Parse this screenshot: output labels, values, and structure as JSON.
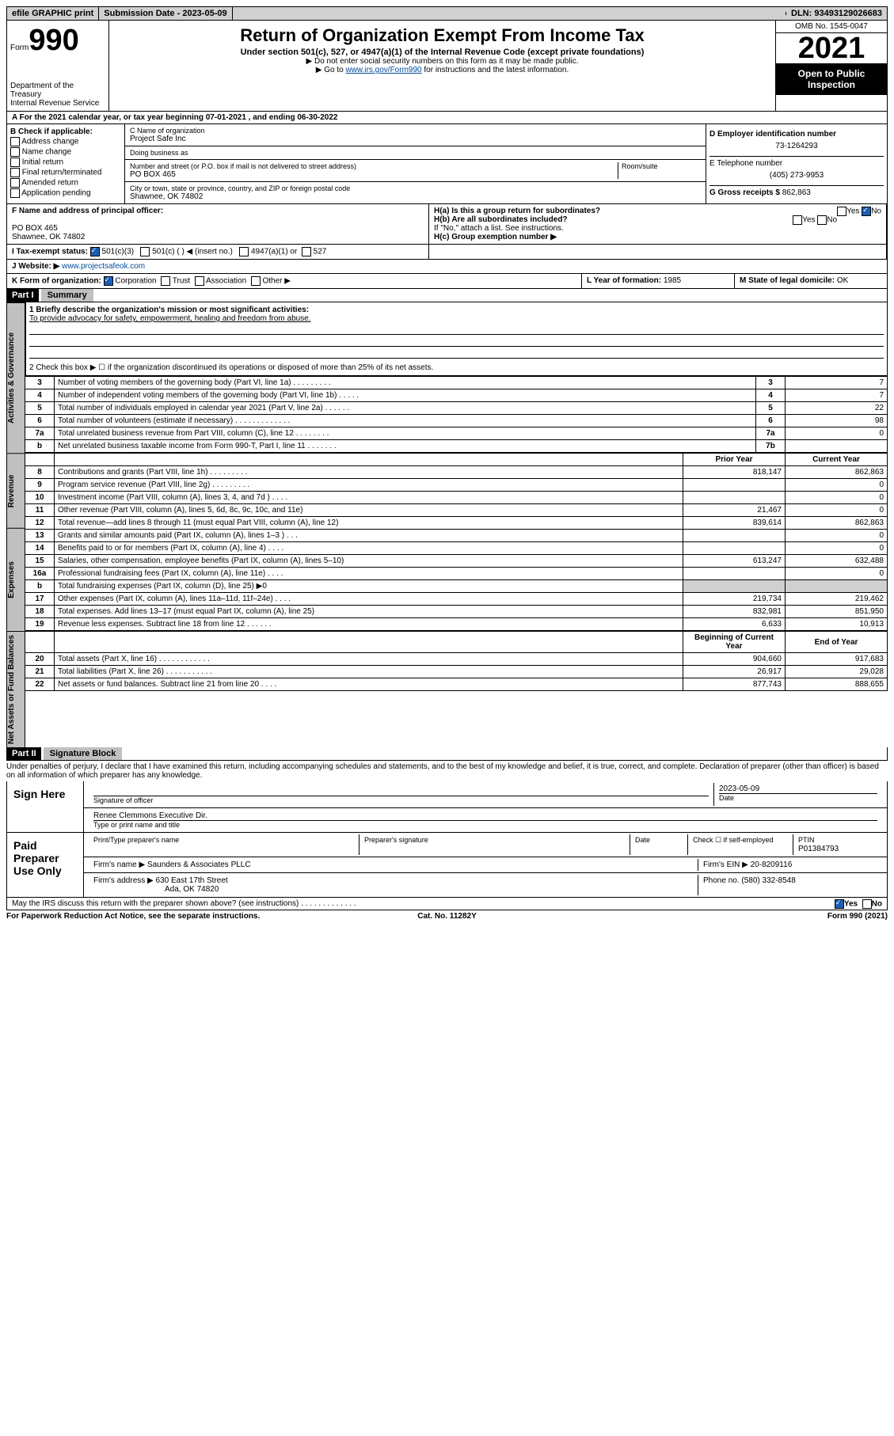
{
  "topbar": {
    "efile": "efile GRAPHIC print",
    "submission_label": "Submission Date",
    "submission_value": "2023-05-09",
    "dln_label": "DLN:",
    "dln_value": "93493129026683"
  },
  "header": {
    "form_word": "Form",
    "form_number": "990",
    "dept": "Department of the Treasury",
    "irs": "Internal Revenue Service",
    "title": "Return of Organization Exempt From Income Tax",
    "sub": "Under section 501(c), 527, or 4947(a)(1) of the Internal Revenue Code (except private foundations)",
    "warn1": "▶ Do not enter social security numbers on this form as it may be made public.",
    "warn2_pre": "▶ Go to ",
    "warn2_link": "www.irs.gov/Form990",
    "warn2_post": " for instructions and the latest information.",
    "omb": "OMB No. 1545-0047",
    "year": "2021",
    "open_public": "Open to Public Inspection"
  },
  "row_a": {
    "text_pre": "A For the 2021 calendar year, or tax year beginning ",
    "begin": "07-01-2021",
    "mid": " , and ending ",
    "end": "06-30-2022"
  },
  "col_b": {
    "label": "B Check if applicable:",
    "opts": [
      "Address change",
      "Name change",
      "Initial return",
      "Final return/terminated",
      "Amended return",
      "Application pending"
    ],
    "checked": [
      false,
      false,
      false,
      false,
      false,
      false
    ]
  },
  "col_c": {
    "name_label": "C Name of organization",
    "name": "Project Safe Inc",
    "dba_label": "Doing business as",
    "dba": "",
    "street_label": "Number and street (or P.O. box if mail is not delivered to street address)",
    "room_label": "Room/suite",
    "street": "PO BOX 465",
    "city_label": "City or town, state or province, country, and ZIP or foreign postal code",
    "city": "Shawnee, OK  74802"
  },
  "col_d": {
    "label": "D Employer identification number",
    "ein": "73-1264293"
  },
  "col_e": {
    "label": "E Telephone number",
    "phone": "(405) 273-9953"
  },
  "col_g": {
    "label": "G Gross receipts $",
    "value": "862,863"
  },
  "row_f": {
    "label": "F  Name and address of principal officer:",
    "addr1": "PO BOX 465",
    "addr2": "Shawnee, OK  74802"
  },
  "row_h": {
    "ha": "H(a)  Is this a group return for subordinates?",
    "hb": "H(b)  Are all subordinates included?",
    "hb_note": "If \"No,\" attach a list. See instructions.",
    "hc": "H(c)  Group exemption number ▶",
    "yes": "Yes",
    "no": "No",
    "ha_no_checked": true
  },
  "row_i": {
    "label": "I  Tax-exempt status:",
    "c3": "501(c)(3)",
    "c": "501(c) (  ) ◀ (insert no.)",
    "a1": "4947(a)(1) or",
    "s527": "527",
    "c3_checked": true
  },
  "row_j": {
    "label": "J  Website: ▶",
    "value": "www.projectsafeok.com"
  },
  "row_k": {
    "label": "K Form of organization:",
    "corp": "Corporation",
    "trust": "Trust",
    "assoc": "Association",
    "other": "Other ▶",
    "corp_checked": true
  },
  "row_l": {
    "label": "L Year of formation:",
    "value": "1985"
  },
  "row_m": {
    "label": "M State of legal domicile:",
    "value": "OK"
  },
  "part1": {
    "hdr": "Part I",
    "title": "Summary",
    "l1_label": "1  Briefly describe the organization's mission or most significant activities:",
    "l1_value": "To provide advocacy for safety, empowerment, healing and freedom from abuse.",
    "l2": "2  Check this box ▶ ☐  if the organization discontinued its operations or disposed of more than 25% of its net assets.",
    "groups": {
      "gov": "Activities & Governance",
      "rev": "Revenue",
      "exp": "Expenses",
      "net": "Net Assets or Fund Balances"
    },
    "lines_top": [
      {
        "n": "3",
        "desc": "Number of voting members of the governing body (Part VI, line 1a)  .   .   .   .   .   .   .   .   .",
        "box": "3",
        "v": "7"
      },
      {
        "n": "4",
        "desc": "Number of independent voting members of the governing body (Part VI, line 1b)  .   .   .   .   .",
        "box": "4",
        "v": "7"
      },
      {
        "n": "5",
        "desc": "Total number of individuals employed in calendar year 2021 (Part V, line 2a)  .   .   .   .   .   .",
        "box": "5",
        "v": "22"
      },
      {
        "n": "6",
        "desc": "Total number of volunteers (estimate if necessary)  .   .   .   .   .   .   .   .   .   .   .   .   .",
        "box": "6",
        "v": "98"
      },
      {
        "n": "7a",
        "desc": "Total unrelated business revenue from Part VIII, column (C), line 12  .   .   .   .   .   .   .   .",
        "box": "7a",
        "v": "0"
      },
      {
        "n": "b",
        "desc": "Net unrelated business taxable income from Form 990-T, Part I, line 11  .   .   .   .   .   .   .",
        "box": "7b",
        "v": ""
      }
    ],
    "col_prior": "Prior Year",
    "col_current": "Current Year",
    "lines_mid": [
      {
        "n": "8",
        "desc": "Contributions and grants (Part VIII, line 1h)  .   .   .   .   .   .   .   .   .",
        "p": "818,147",
        "c": "862,863"
      },
      {
        "n": "9",
        "desc": "Program service revenue (Part VIII, line 2g)  .   .   .   .   .   .   .   .   .",
        "p": "",
        "c": "0"
      },
      {
        "n": "10",
        "desc": "Investment income (Part VIII, column (A), lines 3, 4, and 7d )  .   .   .   .",
        "p": "",
        "c": "0"
      },
      {
        "n": "11",
        "desc": "Other revenue (Part VIII, column (A), lines 5, 6d, 8c, 9c, 10c, and 11e)",
        "p": "21,467",
        "c": "0"
      },
      {
        "n": "12",
        "desc": "Total revenue—add lines 8 through 11 (must equal Part VIII, column (A), line 12)",
        "p": "839,614",
        "c": "862,863"
      },
      {
        "n": "13",
        "desc": "Grants and similar amounts paid (Part IX, column (A), lines 1–3 )  .   .   .",
        "p": "",
        "c": "0"
      },
      {
        "n": "14",
        "desc": "Benefits paid to or for members (Part IX, column (A), line 4)  .   .   .   .",
        "p": "",
        "c": "0"
      },
      {
        "n": "15",
        "desc": "Salaries, other compensation, employee benefits (Part IX, column (A), lines 5–10)",
        "p": "613,247",
        "c": "632,488"
      },
      {
        "n": "16a",
        "desc": "Professional fundraising fees (Part IX, column (A), line 11e)  .   .   .   .",
        "p": "",
        "c": "0"
      },
      {
        "n": "b",
        "desc": "Total fundraising expenses (Part IX, column (D), line 25) ▶0",
        "p": "shade",
        "c": "shade"
      },
      {
        "n": "17",
        "desc": "Other expenses (Part IX, column (A), lines 11a–11d, 11f–24e)  .   .   .   .",
        "p": "219,734",
        "c": "219,462"
      },
      {
        "n": "18",
        "desc": "Total expenses. Add lines 13–17 (must equal Part IX, column (A), line 25)",
        "p": "832,981",
        "c": "851,950"
      },
      {
        "n": "19",
        "desc": "Revenue less expenses. Subtract line 18 from line 12  .   .   .   .   .   .",
        "p": "6,633",
        "c": "10,913"
      }
    ],
    "col_begin": "Beginning of Current Year",
    "col_end": "End of Year",
    "lines_net": [
      {
        "n": "20",
        "desc": "Total assets (Part X, line 16)  .   .   .   .   .   .   .   .   .   .   .   .",
        "p": "904,660",
        "c": "917,683"
      },
      {
        "n": "21",
        "desc": "Total liabilities (Part X, line 26)  .   .   .   .   .   .   .   .   .   .   .",
        "p": "26,917",
        "c": "29,028"
      },
      {
        "n": "22",
        "desc": "Net assets or fund balances. Subtract line 21 from line 20  .   .   .   .",
        "p": "877,743",
        "c": "888,655"
      }
    ]
  },
  "part2": {
    "hdr": "Part II",
    "title": "Signature Block",
    "decl": "Under penalties of perjury, I declare that I have examined this return, including accompanying schedules and statements, and to the best of my knowledge and belief, it is true, correct, and complete. Declaration of preparer (other than officer) is based on all information of which preparer has any knowledge.",
    "sign_here": "Sign Here",
    "sig_officer": "Signature of officer",
    "date_label": "Date",
    "date_value": "2023-05-09",
    "officer_name": "Renee Clemmons  Executive Dir.",
    "type_name": "Type or print name and title",
    "paid": "Paid Preparer Use Only",
    "prep_name_label": "Print/Type preparer's name",
    "prep_sig_label": "Preparer's signature",
    "check_self": "Check ☐ if self-employed",
    "ptin_label": "PTIN",
    "ptin": "P01384793",
    "firm_name_label": "Firm's name   ▶",
    "firm_name": "Saunders & Associates PLLC",
    "firm_ein_label": "Firm's EIN ▶",
    "firm_ein": "20-8209116",
    "firm_addr_label": "Firm's address ▶",
    "firm_addr1": "630 East 17th Street",
    "firm_addr2": "Ada, OK  74820",
    "phone_label": "Phone no.",
    "phone": "(580) 332-8548",
    "may_irs": "May the IRS discuss this return with the preparer shown above? (see instructions)  .   .   .   .   .   .   .   .   .   .   .   .   .",
    "yes": "Yes",
    "no": "No",
    "yes_checked": true
  },
  "footer": {
    "left": "For Paperwork Reduction Act Notice, see the separate instructions.",
    "mid": "Cat. No. 11282Y",
    "right": "Form 990 (2021)"
  }
}
